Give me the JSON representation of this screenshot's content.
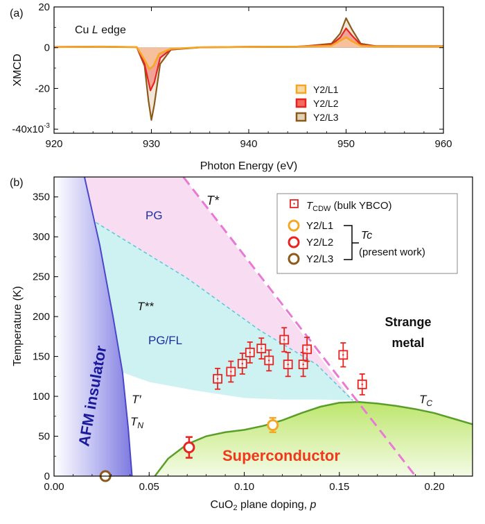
{
  "figure": {
    "panel_a_label": "(a)",
    "panel_b_label": "(b)"
  },
  "chart_data": [
    {
      "type": "line",
      "panel": "(a)",
      "annotation": "Cu L edge",
      "annotation_parts": {
        "pre": "Cu ",
        "italic": "L",
        "post": " edge"
      },
      "xlabel": "Photon Energy (eV)",
      "ylabel": "XMCD",
      "xlim": [
        920,
        960
      ],
      "ylim": [
        -42,
        20
      ],
      "x_ticks": [
        920,
        930,
        940,
        950,
        960
      ],
      "x_tick_labels": [
        "920",
        "930",
        "940",
        "950",
        "960"
      ],
      "y_ticks": [
        20,
        0,
        -20,
        -40
      ],
      "y_tick_labels": [
        "20",
        "0",
        "-20",
        "-40x10"
      ],
      "y_tick_exponent": "-3",
      "legend_position": "lower-right",
      "series": [
        {
          "name": "Y2/L1",
          "color": "#f5a623",
          "fill": "#f9d9a2",
          "points": [
            [
              920,
              0.3
            ],
            [
              925,
              0.5
            ],
            [
              928.5,
              0.3
            ],
            [
              929.3,
              -6
            ],
            [
              929.8,
              -10.5
            ],
            [
              930.2,
              -9
            ],
            [
              930.8,
              -3
            ],
            [
              932,
              -0.6
            ],
            [
              935,
              0.2
            ],
            [
              940,
              0.4
            ],
            [
              945,
              0.5
            ],
            [
              948.5,
              1
            ],
            [
              949.4,
              3.5
            ],
            [
              950,
              5
            ],
            [
              950.6,
              3.2
            ],
            [
              951.5,
              1
            ],
            [
              953,
              0.6
            ],
            [
              960,
              0.6
            ]
          ]
        },
        {
          "name": "Y2/L2",
          "color": "#e8231f",
          "fill": "#f26b5e",
          "points": [
            [
              920,
              0.4
            ],
            [
              925,
              0.6
            ],
            [
              928.5,
              0.3
            ],
            [
              929.3,
              -8
            ],
            [
              929.9,
              -21
            ],
            [
              930.3,
              -17
            ],
            [
              930.9,
              -5
            ],
            [
              932,
              -0.8
            ],
            [
              935,
              0.2
            ],
            [
              940,
              0.5
            ],
            [
              945,
              0.6
            ],
            [
              948.5,
              1.5
            ],
            [
              949.4,
              5
            ],
            [
              950,
              9.5
            ],
            [
              950.6,
              6
            ],
            [
              951.5,
              1.5
            ],
            [
              953,
              0.8
            ],
            [
              960,
              0.8
            ]
          ]
        },
        {
          "name": "Y2/L3",
          "color": "#8b5a1b",
          "fill": "#e2d2b6",
          "points": [
            [
              920,
              0.3
            ],
            [
              925,
              0.4
            ],
            [
              928.5,
              0.2
            ],
            [
              929.3,
              -9
            ],
            [
              929.7,
              -26
            ],
            [
              930.0,
              -35.5
            ],
            [
              930.3,
              -28
            ],
            [
              930.9,
              -8
            ],
            [
              932,
              -1
            ],
            [
              935,
              0.1
            ],
            [
              940,
              0.3
            ],
            [
              945,
              0.4
            ],
            [
              948.5,
              2
            ],
            [
              949.4,
              7
            ],
            [
              950,
              14.5
            ],
            [
              950.6,
              9
            ],
            [
              951.5,
              2
            ],
            [
              953,
              0.8
            ],
            [
              960,
              0.6
            ]
          ]
        }
      ]
    },
    {
      "type": "scatter",
      "panel": "(b)",
      "xlabel": "CuO2 plane doping, p",
      "xlabel_parts": {
        "pre": "CuO",
        "sub": "2",
        "post": " plane doping, ",
        "italic": "p"
      },
      "ylabel": "Temperature (K)",
      "xlim": [
        0,
        0.22
      ],
      "ylim": [
        0,
        375
      ],
      "x_ticks": [
        0.0,
        0.05,
        0.1,
        0.15,
        0.2
      ],
      "x_tick_labels": [
        "0.00",
        "0.05",
        "0.10",
        "0.15",
        "0.20"
      ],
      "y_ticks": [
        0,
        50,
        100,
        150,
        200,
        250,
        300,
        350
      ],
      "y_tick_labels": [
        "0",
        "50",
        "100",
        "150",
        "200",
        "250",
        "300",
        "350"
      ],
      "region_labels": {
        "pg": "PG",
        "pgfl": "PG/FL",
        "afm": "AFM insulator",
        "strange1": "Strange",
        "strange2": "metal",
        "superconductor": "Superconductor",
        "tstar": "T*",
        "tstarstar": "T**",
        "tprime": "T′",
        "tn_main": "T",
        "tn_sub": "N",
        "tc_main": "T",
        "tc_sub": "C"
      },
      "legend": {
        "position": "top-right",
        "tcdw_main": "T",
        "tcdw_sub": "CDW",
        "tcdw_suffix": " (bulk YBCO)",
        "tc_label": "Tc",
        "present_work": "(present work)"
      },
      "tcdw_series": {
        "name": "TCDW (bulk YBCO)",
        "color": "#e8231f",
        "points": [
          {
            "p": 0.086,
            "T": 122,
            "err": 13
          },
          {
            "p": 0.093,
            "T": 131,
            "err": 13
          },
          {
            "p": 0.099,
            "T": 141,
            "err": 13
          },
          {
            "p": 0.103,
            "T": 155,
            "err": 13
          },
          {
            "p": 0.109,
            "T": 160,
            "err": 13
          },
          {
            "p": 0.113,
            "T": 145,
            "err": 13
          },
          {
            "p": 0.121,
            "T": 171,
            "err": 15
          },
          {
            "p": 0.123,
            "T": 140,
            "err": 15
          },
          {
            "p": 0.131,
            "T": 140,
            "err": 15
          },
          {
            "p": 0.133,
            "T": 159,
            "err": 15
          },
          {
            "p": 0.152,
            "T": 152,
            "err": 15
          },
          {
            "p": 0.162,
            "T": 115,
            "err": 13
          }
        ]
      },
      "tc_series": [
        {
          "name": "Y2/L1",
          "color": "#f5a623",
          "p": 0.115,
          "T": 64,
          "err": 9
        },
        {
          "name": "Y2/L2",
          "color": "#e8231f",
          "p": 0.071,
          "T": 36,
          "err": 13
        },
        {
          "name": "Y2/L3",
          "color": "#8b5a1b",
          "p": 0.027,
          "T": 0,
          "err": 0
        }
      ],
      "curves": {
        "tstar": [
          [
            0.068,
            375
          ],
          [
            0.19,
            0
          ]
        ],
        "tstarstar": [
          [
            0.022,
            318
          ],
          [
            0.07,
            248
          ],
          [
            0.108,
            183
          ],
          [
            0.138,
            140
          ],
          [
            0.157,
            95
          ]
        ],
        "sc_dome": [
          [
            0.053,
            0
          ],
          [
            0.06,
            22
          ],
          [
            0.07,
            40
          ],
          [
            0.08,
            50
          ],
          [
            0.09,
            55
          ],
          [
            0.1,
            58
          ],
          [
            0.11,
            63
          ],
          [
            0.12,
            70
          ],
          [
            0.13,
            79
          ],
          [
            0.14,
            87
          ],
          [
            0.15,
            92
          ],
          [
            0.16,
            93
          ],
          [
            0.17,
            91
          ],
          [
            0.18,
            88
          ],
          [
            0.19,
            84
          ],
          [
            0.2,
            79
          ],
          [
            0.21,
            72
          ],
          [
            0.22,
            65
          ]
        ],
        "afm_edge": [
          [
            0.016,
            375
          ],
          [
            0.024,
            290
          ],
          [
            0.031,
            200
          ],
          [
            0.036,
            130
          ],
          [
            0.039,
            60
          ],
          [
            0.041,
            0
          ]
        ]
      },
      "colors": {
        "pg": "#f7d6f0",
        "pgfl": "#c9f1f1",
        "afm": "#6f6bdc",
        "sc": "#c7ec7f",
        "sc_line": "#5a9e2a",
        "tstar": "#e879d4",
        "tstarstar": "#54c8d8"
      }
    }
  ]
}
